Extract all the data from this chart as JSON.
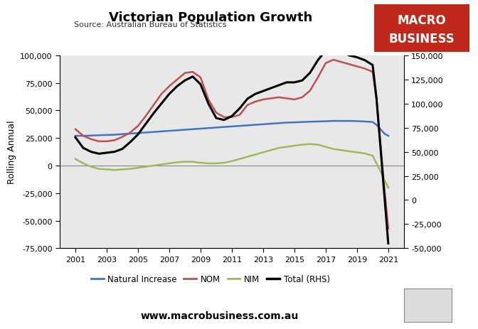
{
  "title": "Victorian Population Growth",
  "subtitle": "Source: Australian Bureau of Statistics",
  "watermark": "www.macrobusiness.com.au",
  "ylabel_left": "Rolling Annual",
  "background_color": "#e8e8e8",
  "fig_background": "#ffffff",
  "years": [
    2001,
    2001.5,
    2002,
    2002.5,
    2003,
    2003.5,
    2004,
    2004.5,
    2005,
    2005.5,
    2006,
    2006.5,
    2007,
    2007.5,
    2008,
    2008.5,
    2009,
    2009.5,
    2010,
    2010.5,
    2011,
    2011.5,
    2012,
    2012.5,
    2013,
    2013.5,
    2014,
    2014.5,
    2015,
    2015.5,
    2016,
    2016.5,
    2017,
    2017.5,
    2018,
    2018.5,
    2019,
    2019.5,
    2020,
    2020.25,
    2020.5,
    2020.75,
    2021
  ],
  "natural_increase": [
    27000,
    27000,
    27200,
    27500,
    27800,
    28000,
    28500,
    29000,
    29500,
    30000,
    30500,
    31000,
    31500,
    32000,
    32500,
    33000,
    33500,
    34000,
    34500,
    35000,
    35500,
    36000,
    36500,
    37000,
    37500,
    38000,
    38500,
    39000,
    39200,
    39500,
    39800,
    40000,
    40200,
    40500,
    40500,
    40500,
    40300,
    40000,
    39500,
    37000,
    33000,
    29000,
    27000
  ],
  "nom": [
    33000,
    27000,
    24000,
    22000,
    22000,
    23000,
    26000,
    30000,
    36000,
    45000,
    55000,
    65000,
    72000,
    78000,
    84000,
    85000,
    80000,
    60000,
    48000,
    44000,
    44000,
    46000,
    55000,
    58000,
    60000,
    61000,
    62000,
    61000,
    60000,
    62000,
    68000,
    80000,
    93000,
    96000,
    94000,
    92000,
    90000,
    88000,
    85000,
    60000,
    20000,
    -20000,
    -57000
  ],
  "nim": [
    6000,
    2000,
    -1000,
    -3000,
    -3500,
    -4000,
    -3500,
    -3000,
    -2000,
    -1000,
    0,
    1000,
    2000,
    3000,
    3500,
    3500,
    2500,
    2000,
    2000,
    2500,
    4000,
    6000,
    8000,
    10000,
    12000,
    14000,
    16000,
    17000,
    18000,
    19000,
    19500,
    19000,
    17000,
    15000,
    14000,
    13000,
    12000,
    11000,
    9000,
    2000,
    -5000,
    -13000,
    -20000
  ],
  "total_rhs": [
    65000,
    54000,
    50000,
    48000,
    49000,
    50000,
    53000,
    60000,
    68000,
    79000,
    90000,
    100000,
    110000,
    118000,
    124000,
    128000,
    120000,
    100000,
    85000,
    83000,
    87000,
    95000,
    105000,
    110000,
    113000,
    116000,
    119000,
    122000,
    122000,
    124000,
    132000,
    145000,
    155000,
    158000,
    154000,
    150000,
    148000,
    145000,
    140000,
    105000,
    55000,
    5000,
    -45000
  ],
  "ylim_left": [
    -75000,
    100000
  ],
  "ylim_right": [
    -50000,
    150000
  ],
  "yticks_left": [
    -75000,
    -50000,
    -25000,
    0,
    25000,
    50000,
    75000,
    100000
  ],
  "yticks_right": [
    -50000,
    -25000,
    0,
    25000,
    50000,
    75000,
    100000,
    125000,
    150000
  ],
  "xticks": [
    2001,
    2003,
    2005,
    2007,
    2009,
    2011,
    2013,
    2015,
    2017,
    2019,
    2021
  ],
  "colors": {
    "natural_increase": "#4472c4",
    "nom": "#c0504d",
    "nim": "#9bbb59",
    "total": "#000000"
  },
  "legend_labels": [
    "Natural Increase",
    "NOM",
    "NIM",
    "Total (RHS)"
  ],
  "logo_bg": "#c0281c",
  "logo_text1": "MACRO",
  "logo_text2": "BUSINESS"
}
